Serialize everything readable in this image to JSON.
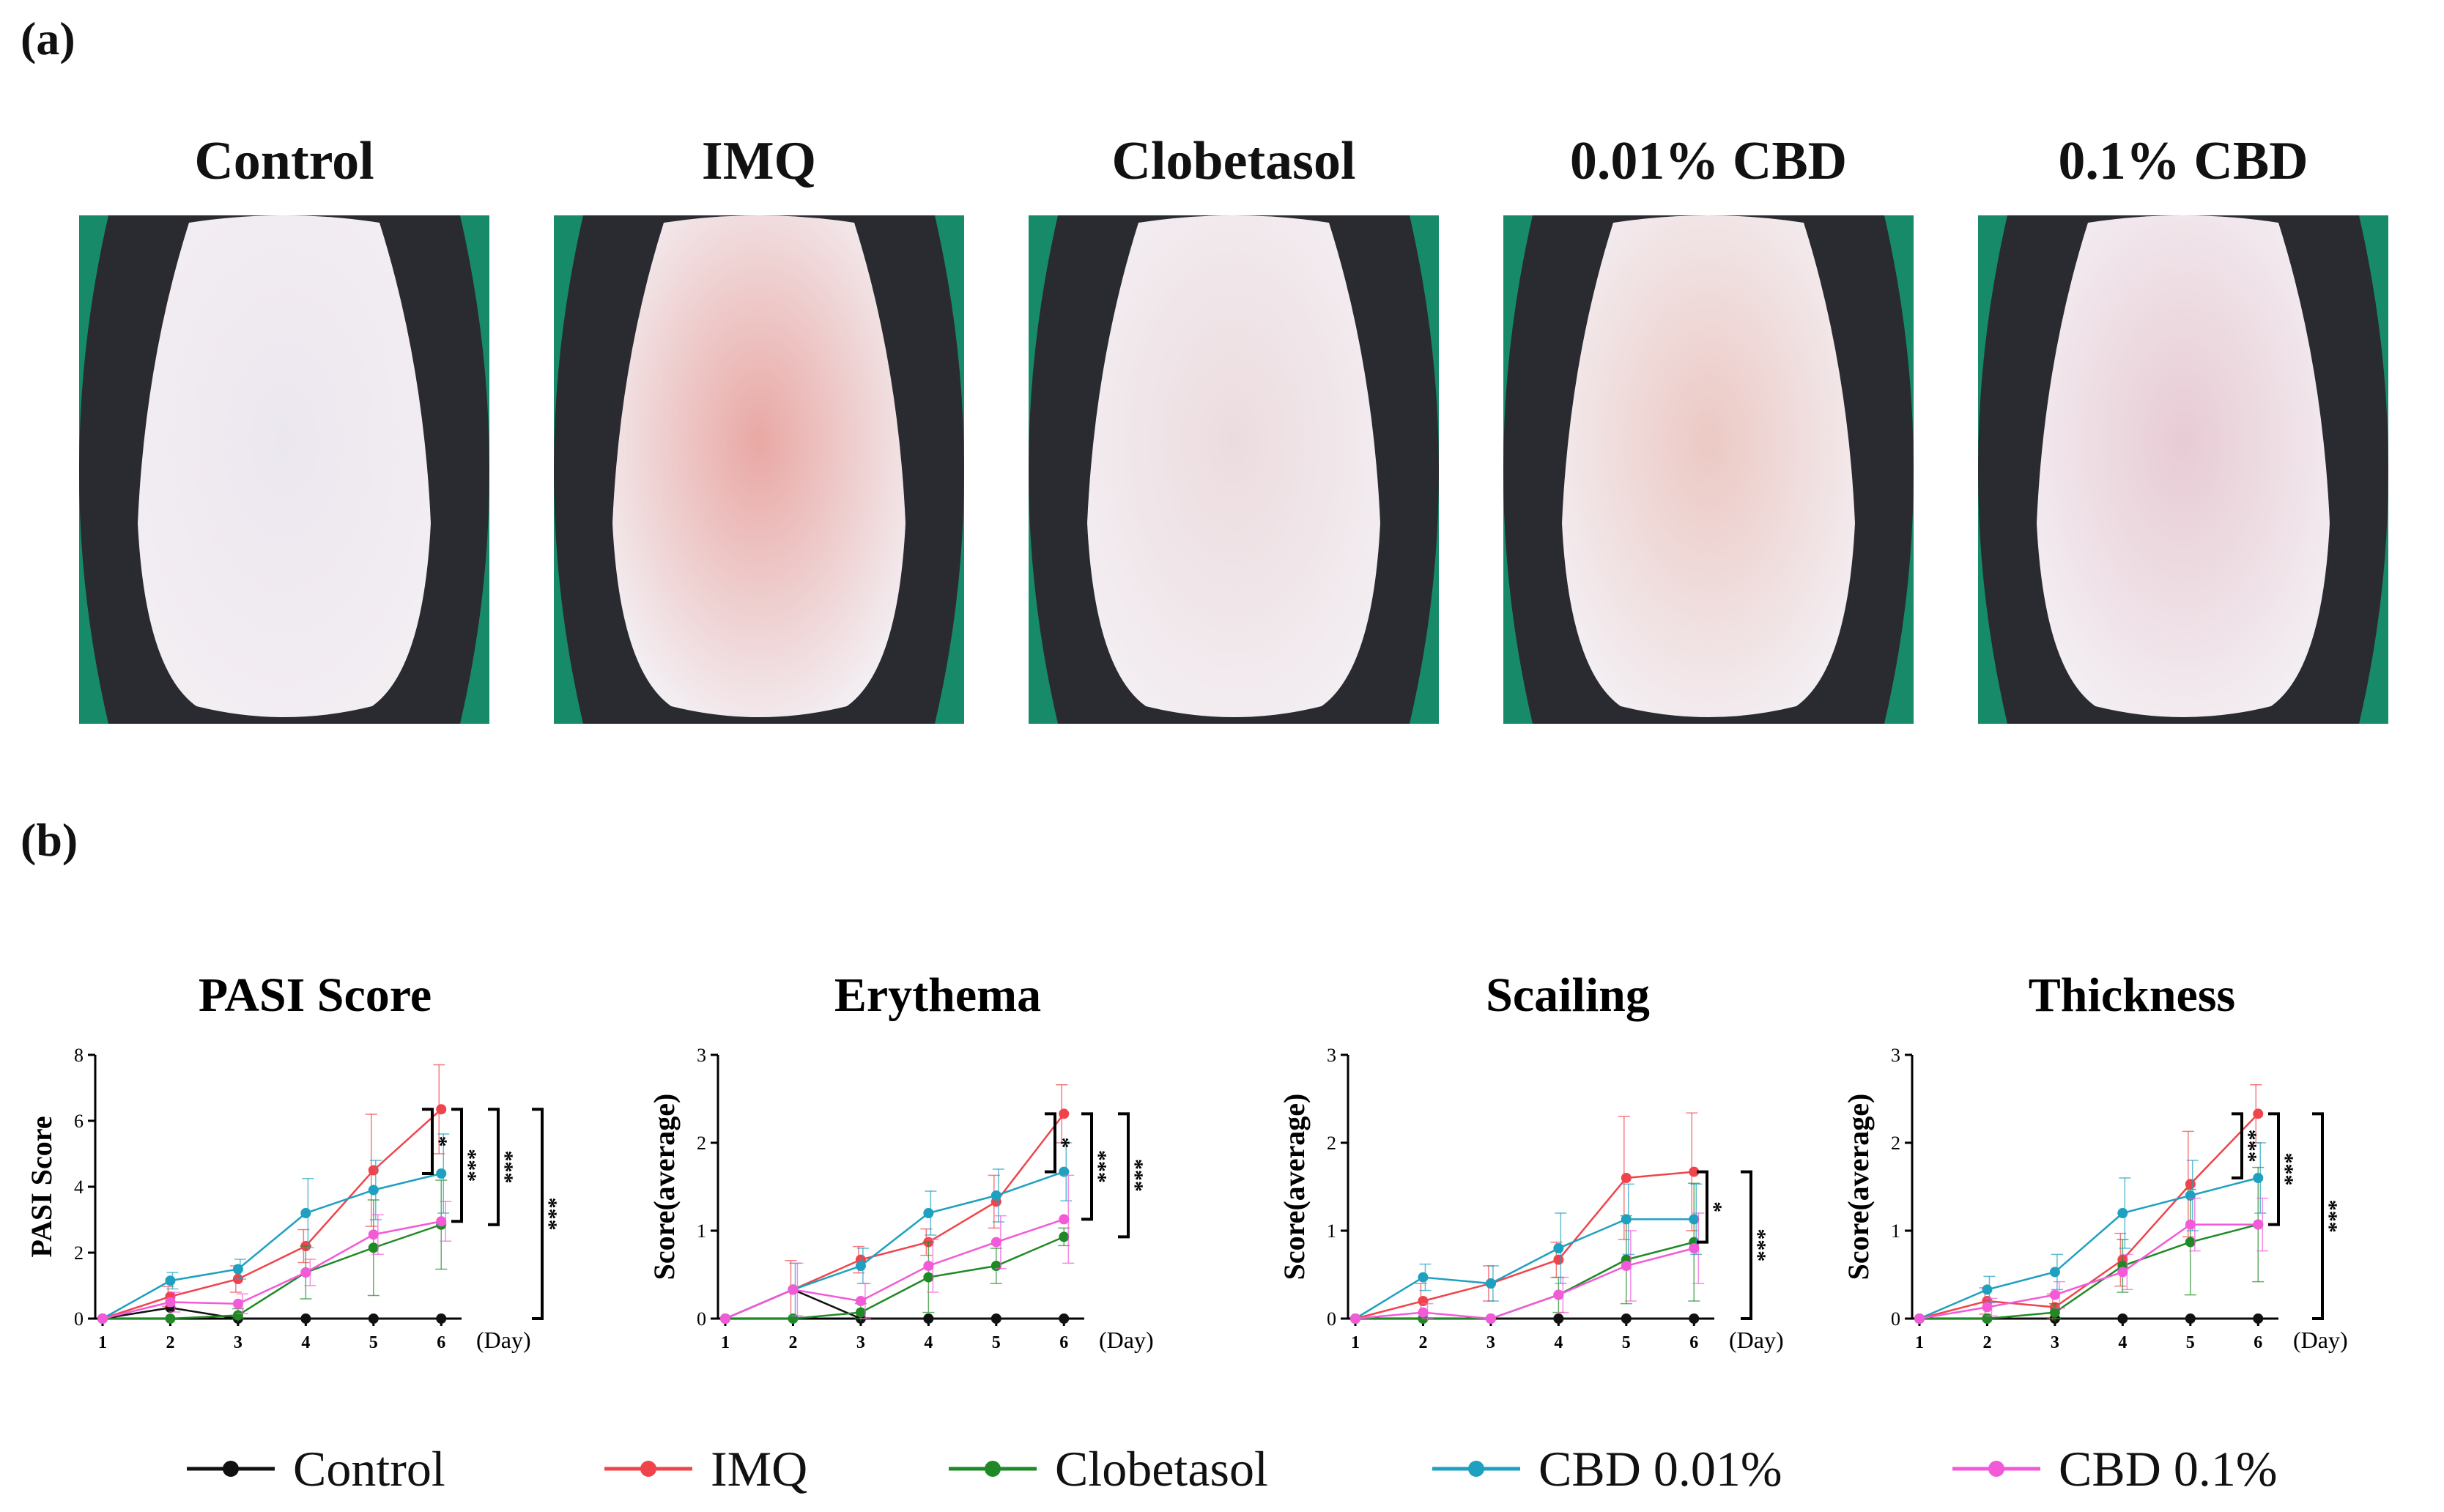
{
  "panel_labels": {
    "a": "(a)",
    "b": "(b)"
  },
  "photos": [
    {
      "title": "Control",
      "tint": "#ece7ef"
    },
    {
      "title": "IMQ",
      "tint": "#e9a8a4"
    },
    {
      "title": "Clobetasol",
      "tint": "#ecdcdf"
    },
    {
      "title": "0.01% CBD",
      "tint": "#ecc9c4"
    },
    {
      "title": "0.1% CBD",
      "tint": "#e8cbd4"
    }
  ],
  "colors": {
    "Control": "#111111",
    "IMQ": "#f0444c",
    "Clobetasol": "#1f8a25",
    "CBD 0.01%": "#1ea0c0",
    "CBD 0.1%": "#f25ad8"
  },
  "legend": [
    "Control",
    "IMQ",
    "Clobetasol",
    "CBD 0.01%",
    "CBD 0.1%"
  ],
  "chart_data": [
    {
      "type": "line",
      "title": "PASI Score",
      "ylabel": "PASI Score",
      "xlabel": "(Day)",
      "x": [
        1,
        2,
        3,
        4,
        5,
        6
      ],
      "ylim": [
        0,
        8
      ],
      "yticks": [
        0,
        2,
        4,
        6,
        8
      ],
      "series": [
        {
          "name": "Control",
          "values": [
            0,
            0.33,
            0,
            0,
            0,
            0
          ],
          "err": [
            0,
            0,
            0,
            0,
            0,
            0
          ]
        },
        {
          "name": "IMQ",
          "values": [
            0,
            0.67,
            1.2,
            2.2,
            4.5,
            6.35
          ],
          "err": [
            0,
            0.3,
            0.4,
            0.5,
            1.7,
            1.35
          ]
        },
        {
          "name": "Clobetasol",
          "values": [
            0,
            0,
            0.1,
            1.4,
            2.15,
            2.85
          ],
          "err": [
            0,
            0,
            0.2,
            0.8,
            1.45,
            1.35
          ]
        },
        {
          "name": "CBD 0.01%",
          "values": [
            0,
            1.15,
            1.5,
            3.2,
            3.9,
            4.4
          ],
          "err": [
            0,
            0.25,
            0.3,
            1.05,
            0.9,
            1.2
          ]
        },
        {
          "name": "CBD 0.1%",
          "values": [
            0,
            0.5,
            0.45,
            1.4,
            2.55,
            2.95
          ],
          "err": [
            0,
            0.3,
            0.3,
            0.4,
            0.6,
            0.6
          ]
        }
      ],
      "significance": [
        "*",
        "***",
        "***",
        "***"
      ]
    },
    {
      "type": "line",
      "title": "Erythema",
      "ylabel": "Score(average)",
      "xlabel": "(Day)",
      "x": [
        1,
        2,
        3,
        4,
        5,
        6
      ],
      "ylim": [
        0,
        3
      ],
      "yticks": [
        0,
        1,
        2,
        3
      ],
      "series": [
        {
          "name": "Control",
          "values": [
            0,
            0.33,
            0,
            0,
            0,
            0
          ],
          "err": [
            0,
            0,
            0,
            0,
            0,
            0
          ]
        },
        {
          "name": "IMQ",
          "values": [
            0,
            0.33,
            0.67,
            0.87,
            1.33,
            2.33
          ],
          "err": [
            0,
            0.33,
            0.15,
            0.15,
            0.3,
            0.33
          ]
        },
        {
          "name": "Clobetasol",
          "values": [
            0,
            0,
            0.07,
            0.47,
            0.6,
            0.93
          ],
          "err": [
            0,
            0,
            0.1,
            0.4,
            0.2,
            0.1
          ]
        },
        {
          "name": "CBD 0.01%",
          "values": [
            0,
            0.33,
            0.6,
            1.2,
            1.4,
            1.67
          ],
          "err": [
            0,
            0.3,
            0.2,
            0.25,
            0.3,
            0.33
          ]
        },
        {
          "name": "CBD 0.1%",
          "values": [
            0,
            0.33,
            0.2,
            0.6,
            0.87,
            1.13
          ],
          "err": [
            0,
            0.3,
            0.2,
            0.3,
            0.3,
            0.5
          ]
        }
      ],
      "significance": [
        "*",
        "***",
        "***"
      ]
    },
    {
      "type": "line",
      "title": "Scailing",
      "ylabel": "Score(average)",
      "xlabel": "(Day)",
      "x": [
        1,
        2,
        3,
        4,
        5,
        6
      ],
      "ylim": [
        0,
        3
      ],
      "yticks": [
        0,
        1,
        2,
        3
      ],
      "series": [
        {
          "name": "Control",
          "values": [
            0,
            0,
            0,
            0,
            0,
            0
          ],
          "err": [
            0,
            0,
            0,
            0,
            0,
            0
          ]
        },
        {
          "name": "IMQ",
          "values": [
            0,
            0.2,
            0.4,
            0.67,
            1.6,
            1.67
          ],
          "err": [
            0,
            0.2,
            0.2,
            0.2,
            0.7,
            0.67
          ]
        },
        {
          "name": "Clobetasol",
          "values": [
            0,
            0,
            0,
            0.27,
            0.67,
            0.87
          ],
          "err": [
            0,
            0,
            0,
            0.2,
            0.5,
            0.67
          ]
        },
        {
          "name": "CBD 0.01%",
          "values": [
            0,
            0.47,
            0.4,
            0.8,
            1.13,
            1.13
          ],
          "err": [
            0,
            0.15,
            0.2,
            0.4,
            0.4,
            0.4
          ]
        },
        {
          "name": "CBD 0.1%",
          "values": [
            0,
            0.07,
            0,
            0.27,
            0.6,
            0.8
          ],
          "err": [
            0,
            0.1,
            0,
            0.2,
            0.4,
            0.4
          ]
        }
      ],
      "significance": [
        "*",
        "***"
      ]
    },
    {
      "type": "line",
      "title": "Thickness",
      "ylabel": "Score(average)",
      "xlabel": "(Day)",
      "x": [
        1,
        2,
        3,
        4,
        5,
        6
      ],
      "ylim": [
        0,
        3
      ],
      "yticks": [
        0,
        1,
        2,
        3
      ],
      "series": [
        {
          "name": "Control",
          "values": [
            0,
            0,
            0,
            0,
            0,
            0
          ],
          "err": [
            0,
            0,
            0,
            0,
            0,
            0
          ]
        },
        {
          "name": "IMQ",
          "values": [
            0,
            0.2,
            0.13,
            0.67,
            1.53,
            2.33
          ],
          "err": [
            0,
            0.15,
            0.15,
            0.3,
            0.6,
            0.33
          ]
        },
        {
          "name": "Clobetasol",
          "values": [
            0,
            0,
            0.07,
            0.6,
            0.87,
            1.07
          ],
          "err": [
            0,
            0,
            0.1,
            0.3,
            0.6,
            0.65
          ]
        },
        {
          "name": "CBD 0.01%",
          "values": [
            0,
            0.33,
            0.53,
            1.2,
            1.4,
            1.6
          ],
          "err": [
            0,
            0.15,
            0.2,
            0.4,
            0.4,
            0.4
          ]
        },
        {
          "name": "CBD 0.1%",
          "values": [
            0,
            0.13,
            0.27,
            0.53,
            1.07,
            1.07
          ],
          "err": [
            0,
            0.1,
            0.15,
            0.2,
            0.3,
            0.3
          ]
        }
      ],
      "significance": [
        "***",
        "***",
        "***"
      ]
    }
  ]
}
